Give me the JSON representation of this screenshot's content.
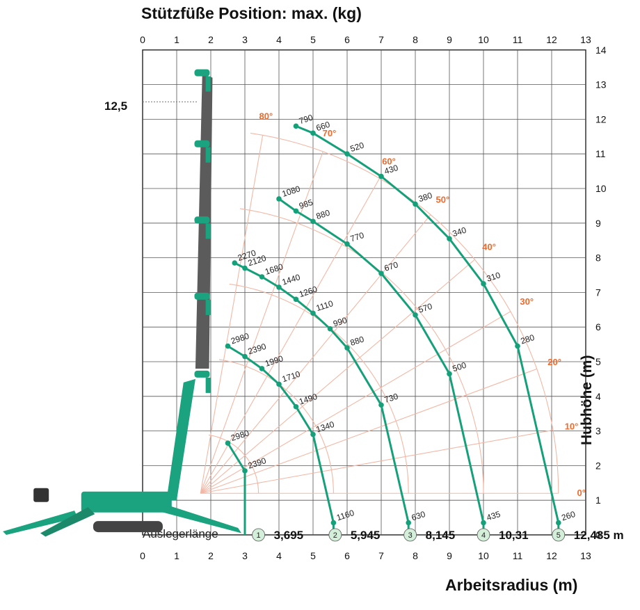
{
  "title": "Stützfüße Position: max. (kg)",
  "x_axis_label": "Arbeitsradius (m)",
  "y_axis_label": "Hubhöhe (m)",
  "boom_length_label": "Auslegerlänge",
  "height_mark_label": "12,5",
  "colors": {
    "curve": "#15a07a",
    "grid_arc": "#f2b8a6",
    "angle_label": "#ef6a2d",
    "crane_body": "#1aa37e",
    "boom_gray": "#5b5b5b"
  },
  "chart_data": {
    "type": "line",
    "title": "Stützfüße Position: max. (kg)",
    "xlabel": "Arbeitsradius (m)",
    "ylabel": "Hubhöhe (m)",
    "xlim": [
      0,
      13
    ],
    "ylim": [
      0,
      14
    ],
    "x_ticks": [
      "0",
      "1",
      "2",
      "3",
      "4",
      "5",
      "6",
      "7",
      "8",
      "9",
      "10",
      "11",
      "12",
      "13"
    ],
    "y_ticks": [
      "0",
      "1",
      "2",
      "3",
      "4",
      "5",
      "6",
      "7",
      "8",
      "9",
      "10",
      "11",
      "12",
      "13",
      "14"
    ],
    "grid": true,
    "angle_labels": [
      "0°",
      "10°",
      "20°",
      "30°",
      "40°",
      "50°",
      "60°",
      "70°",
      "80°"
    ],
    "boom_lengths": [
      {
        "id": "1",
        "length": "3,695"
      },
      {
        "id": "2",
        "length": "5,945"
      },
      {
        "id": "3",
        "length": "8,145"
      },
      {
        "id": "4",
        "length": "10,31"
      },
      {
        "id": "5",
        "length": "12,485 m"
      }
    ],
    "series": [
      {
        "name": "1",
        "points": [
          {
            "x": 2.5,
            "y": 2.65,
            "load": "2980"
          },
          {
            "x": 3.0,
            "y": 1.85,
            "load": "2390"
          }
        ]
      },
      {
        "name": "2",
        "points": [
          {
            "x": 2.5,
            "y": 5.45,
            "load": "2980"
          },
          {
            "x": 3.0,
            "y": 5.15,
            "load": "2390"
          },
          {
            "x": 3.5,
            "y": 4.8,
            "load": "1990"
          },
          {
            "x": 4.0,
            "y": 4.35,
            "load": "1710"
          },
          {
            "x": 4.5,
            "y": 3.7,
            "load": "1490"
          },
          {
            "x": 5.0,
            "y": 2.9,
            "load": "1340"
          },
          {
            "x": 5.6,
            "y": 0.35,
            "load": "1160"
          }
        ]
      },
      {
        "name": "3",
        "points": [
          {
            "x": 2.7,
            "y": 7.85,
            "load": "2270"
          },
          {
            "x": 3.0,
            "y": 7.7,
            "load": "2120"
          },
          {
            "x": 3.5,
            "y": 7.45,
            "load": "1680"
          },
          {
            "x": 4.0,
            "y": 7.15,
            "load": "1440"
          },
          {
            "x": 4.5,
            "y": 6.8,
            "load": "1260"
          },
          {
            "x": 5.0,
            "y": 6.4,
            "load": "1110"
          },
          {
            "x": 5.5,
            "y": 5.95,
            "load": "990"
          },
          {
            "x": 6.0,
            "y": 5.4,
            "load": "880"
          },
          {
            "x": 7.0,
            "y": 3.75,
            "load": "730"
          },
          {
            "x": 7.8,
            "y": 0.35,
            "load": "630"
          }
        ]
      },
      {
        "name": "4",
        "points": [
          {
            "x": 4.0,
            "y": 9.7,
            "load": "1080"
          },
          {
            "x": 4.5,
            "y": 9.35,
            "load": "985"
          },
          {
            "x": 5.0,
            "y": 9.05,
            "load": "880"
          },
          {
            "x": 6.0,
            "y": 8.4,
            "load": "770"
          },
          {
            "x": 7.0,
            "y": 7.55,
            "load": "670"
          },
          {
            "x": 8.0,
            "y": 6.35,
            "load": "570"
          },
          {
            "x": 9.0,
            "y": 4.65,
            "load": "500"
          },
          {
            "x": 10.0,
            "y": 0.35,
            "load": "435"
          }
        ]
      },
      {
        "name": "5",
        "points": [
          {
            "x": 4.5,
            "y": 11.8,
            "load": "790"
          },
          {
            "x": 5.0,
            "y": 11.6,
            "load": "660"
          },
          {
            "x": 6.0,
            "y": 11.0,
            "load": "520"
          },
          {
            "x": 7.0,
            "y": 10.35,
            "load": "430"
          },
          {
            "x": 8.0,
            "y": 9.55,
            "load": "380"
          },
          {
            "x": 9.0,
            "y": 8.55,
            "load": "340"
          },
          {
            "x": 10.0,
            "y": 7.25,
            "load": "310"
          },
          {
            "x": 11.0,
            "y": 5.45,
            "load": "280"
          },
          {
            "x": 12.2,
            "y": 0.35,
            "load": "260"
          }
        ]
      }
    ]
  }
}
